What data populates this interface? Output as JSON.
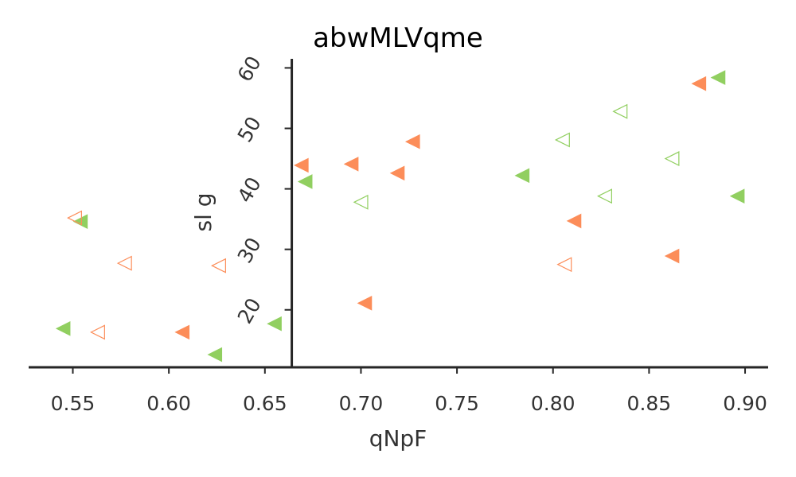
{
  "chart_data": {
    "type": "scatter",
    "title": "abwMLVqme",
    "xlabel": "qNpF",
    "ylabel": "sl g",
    "xlim": [
      0.527,
      0.912
    ],
    "ylim": [
      10.5,
      61.5
    ],
    "x_ticks": [
      "0.55",
      "0.60",
      "0.65",
      "0.70",
      "0.75",
      "0.80",
      "0.85",
      "0.90"
    ],
    "y_ticks": [
      "20",
      "30",
      "40",
      "50",
      "60"
    ],
    "y_axis_at_x": 0.664,
    "marker": "triangle-left",
    "colors": {
      "orange": "#fc8d59",
      "green": "#91cf60",
      "axis": "#262626"
    },
    "series": [
      {
        "color": "#fc8d59",
        "filled": true,
        "points": [
          [
            0.876,
            57.4
          ],
          [
            0.727,
            47.8
          ],
          [
            0.669,
            43.9
          ],
          [
            0.695,
            44.1
          ],
          [
            0.719,
            42.6
          ],
          [
            0.811,
            34.7
          ],
          [
            0.862,
            28.9
          ],
          [
            0.702,
            21.1
          ],
          [
            0.607,
            16.3
          ]
        ]
      },
      {
        "color": "#91cf60",
        "filled": true,
        "points": [
          [
            0.886,
            58.4
          ],
          [
            0.784,
            42.2
          ],
          [
            0.671,
            41.2
          ],
          [
            0.896,
            38.8
          ],
          [
            0.554,
            34.6
          ],
          [
            0.545,
            16.9
          ],
          [
            0.655,
            17.7
          ],
          [
            0.624,
            12.6
          ]
        ]
      },
      {
        "color": "#fc8d59",
        "filled": false,
        "points": [
          [
            0.551,
            35.2
          ],
          [
            0.577,
            27.7
          ],
          [
            0.626,
            27.3
          ],
          [
            0.806,
            27.5
          ],
          [
            0.563,
            16.3
          ]
        ]
      },
      {
        "color": "#91cf60",
        "filled": false,
        "points": [
          [
            0.835,
            52.8
          ],
          [
            0.805,
            48.1
          ],
          [
            0.862,
            45.0
          ],
          [
            0.827,
            38.8
          ],
          [
            0.7,
            37.8
          ]
        ]
      }
    ]
  }
}
